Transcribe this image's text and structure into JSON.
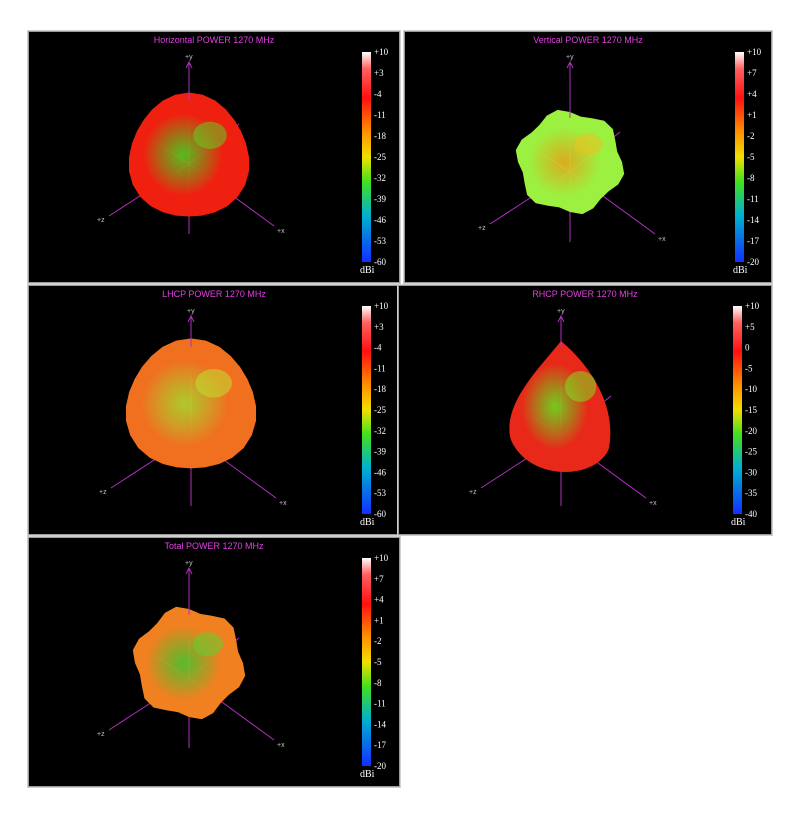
{
  "chart_data": [
    {
      "type": "heatmap",
      "title": "Horizontal POWER 1270  MHz",
      "axes": [
        "+y",
        "+x",
        "+z"
      ],
      "colorbar": {
        "unit": "dBi",
        "ticks": [
          10,
          3,
          -4,
          -11,
          -18,
          -25,
          -32,
          -39,
          -46,
          -53,
          -60
        ],
        "range": [
          -60,
          10
        ]
      },
      "dominant_level": "red"
    },
    {
      "type": "heatmap",
      "title": "Vertical POWER 1270  MHz",
      "axes": [
        "+y",
        "+x",
        "+z"
      ],
      "colorbar": {
        "unit": "dBi",
        "ticks": [
          10,
          7,
          4,
          1,
          -2,
          -5,
          -8,
          -11,
          -14,
          -17,
          -20
        ],
        "range": [
          -20,
          10
        ]
      },
      "dominant_level": "green-yellow"
    },
    {
      "type": "heatmap",
      "title": "LHCP POWER 1270  MHz",
      "axes": [
        "+y",
        "+x",
        "+z"
      ],
      "colorbar": {
        "unit": "dBi",
        "ticks": [
          10,
          3,
          -4,
          -11,
          -18,
          -25,
          -32,
          -39,
          -46,
          -53,
          -60
        ],
        "range": [
          -60,
          10
        ]
      },
      "dominant_level": "orange"
    },
    {
      "type": "heatmap",
      "title": "RHCP POWER 1270  MHz",
      "axes": [
        "+y",
        "+x",
        "+z"
      ],
      "colorbar": {
        "unit": "dBi",
        "ticks": [
          10,
          5,
          0,
          -5,
          -10,
          -15,
          -20,
          -25,
          -30,
          -35,
          -40
        ],
        "range": [
          -40,
          10
        ]
      },
      "dominant_level": "red"
    },
    {
      "type": "heatmap",
      "title": "Total POWER 1270  MHz",
      "axes": [
        "+y",
        "+x",
        "+z"
      ],
      "colorbar": {
        "unit": "dBi",
        "ticks": [
          10,
          7,
          4,
          1,
          -2,
          -5,
          -8,
          -11,
          -14,
          -17,
          -20
        ],
        "range": [
          -20,
          10
        ]
      },
      "dominant_level": "orange"
    }
  ]
}
